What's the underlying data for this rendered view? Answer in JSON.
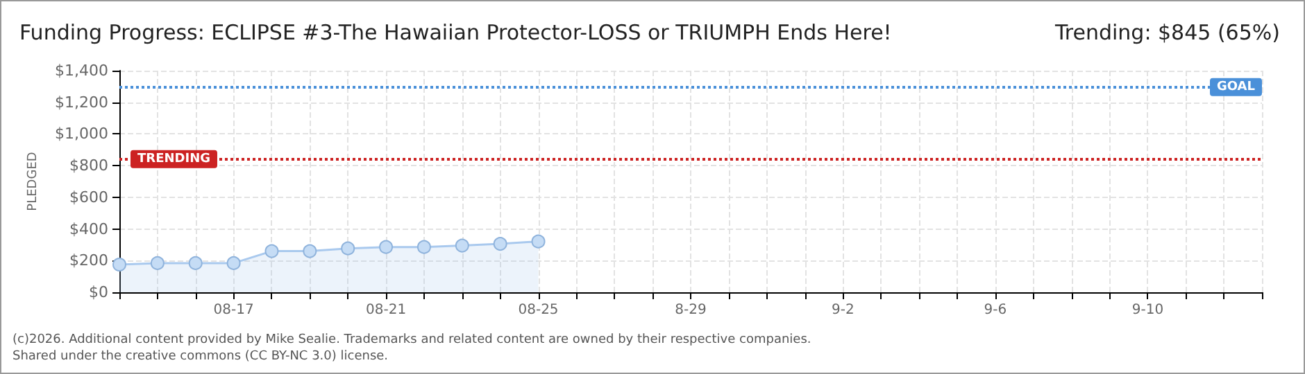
{
  "chart_data": {
    "type": "area",
    "title": "Funding Progress: ECLIPSE #3-The Hawaiian Protector-LOSS or TRIUMPH Ends Here!",
    "subtitle": "Trending: $845 (65%)",
    "ylabel": "PLEDGED",
    "categories": [
      null,
      null,
      null,
      "08-17",
      null,
      null,
      null,
      "08-21",
      null,
      null,
      null,
      "08-25",
      null,
      null,
      null,
      "8-29",
      null,
      null,
      null,
      "9-2",
      null,
      null,
      null,
      "9-6",
      null,
      null,
      null,
      "9-10",
      null,
      null,
      null
    ],
    "series": [
      {
        "color": "#a9c9ee",
        "values": [
          175,
          184,
          184,
          184,
          260,
          260,
          277,
          286,
          286,
          295,
          306,
          321,
          null,
          null,
          null,
          null,
          null,
          null,
          null,
          null,
          null,
          null,
          null,
          null,
          null,
          null,
          null,
          null,
          null,
          null,
          null
        ]
      }
    ],
    "ylim": [
      0,
      1400
    ],
    "yticks": [
      {
        "value": 0,
        "label": "$0"
      },
      {
        "value": 200,
        "label": "$200"
      },
      {
        "value": 400,
        "label": "$400"
      },
      {
        "value": 600,
        "label": "$600"
      },
      {
        "value": 800,
        "label": "$800"
      },
      {
        "value": 1000,
        "label": "$1,000"
      },
      {
        "value": 1200,
        "label": "$1,200"
      },
      {
        "value": 1400,
        "label": "$1,400"
      }
    ],
    "ref_lines": [
      {
        "axis": "y",
        "value": 1300,
        "label": "GOAL",
        "color": "#4a90d9",
        "line_style": "dotted"
      },
      {
        "axis": "y",
        "value": 845,
        "label": "TRENDING",
        "color": "#cc2222",
        "line_style": "dotted"
      }
    ],
    "annotations": [
      "(c)2026. Additional content provided by Mike Sealie. Trademarks and related content are owned by their respective companies.",
      "Shared under the creative commons (CC BY-NC 3.0) license."
    ],
    "grid": true,
    "marker": "circle",
    "line_style": "solid"
  }
}
